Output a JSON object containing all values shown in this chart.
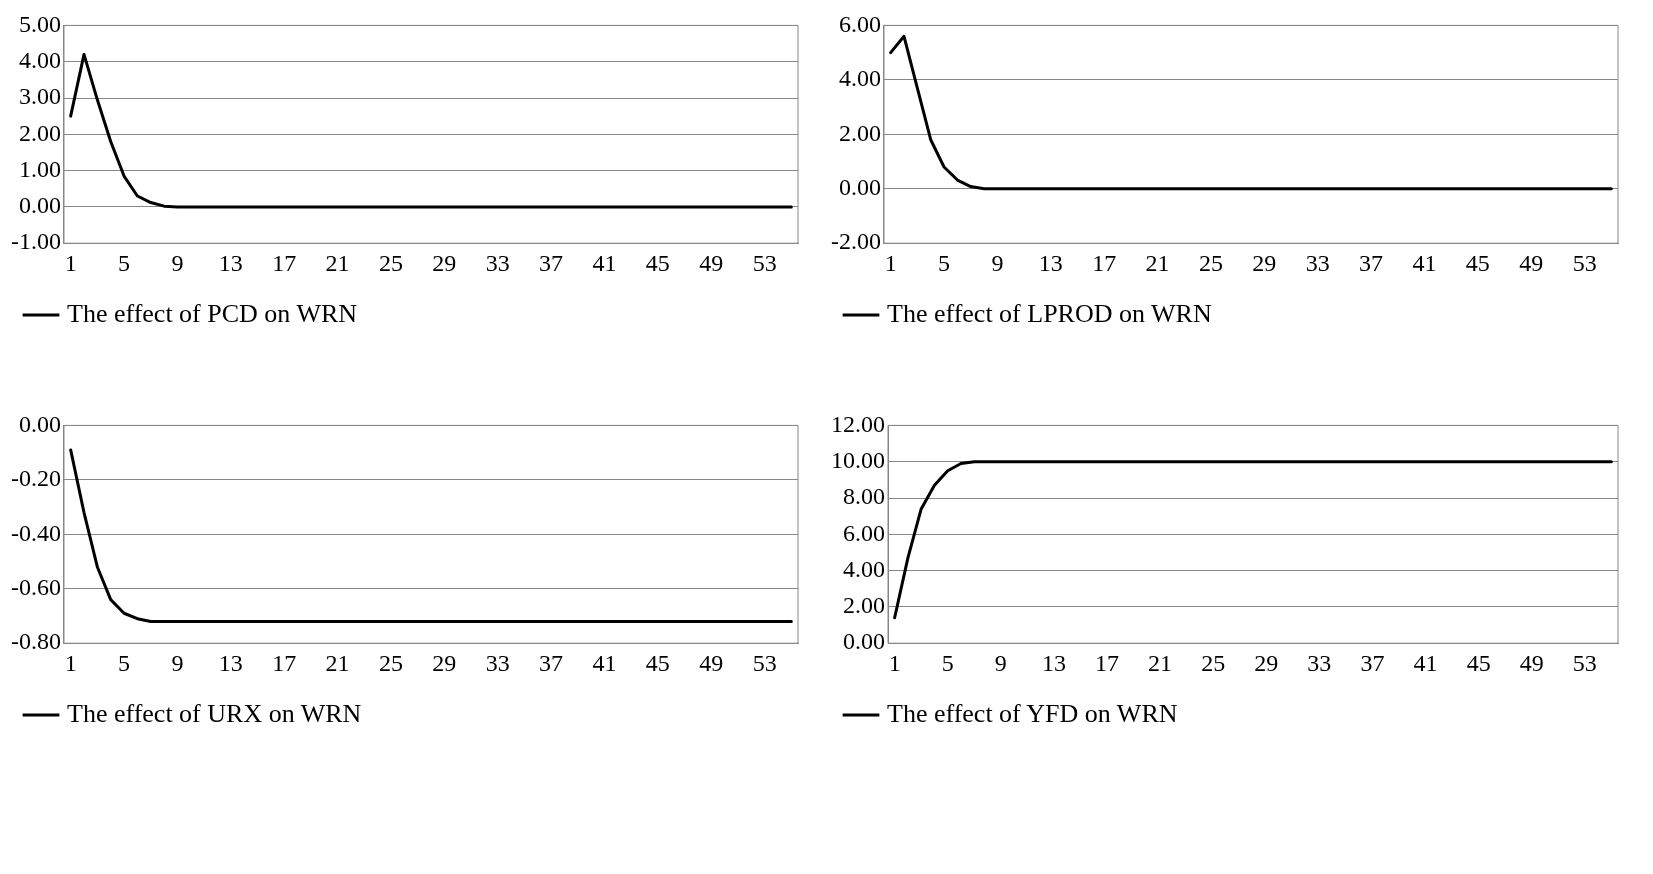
{
  "chart_data": [
    {
      "type": "line",
      "categories": [
        "1",
        null,
        null,
        null,
        "5",
        null,
        null,
        null,
        "9",
        null,
        null,
        null,
        "13",
        null,
        null,
        null,
        "17",
        null,
        null,
        null,
        "21",
        null,
        null,
        null,
        "25",
        null,
        null,
        null,
        "29",
        null,
        null,
        null,
        "33",
        null,
        null,
        null,
        "37",
        null,
        null,
        null,
        "41",
        null,
        null,
        null,
        "45",
        null,
        null,
        null,
        "49",
        null,
        null,
        null,
        "53",
        null,
        null
      ],
      "series": [
        {
          "name": "The effect of PCD on WRN",
          "color": "#000000",
          "values": [
            2.5,
            4.2,
            2.95,
            1.8,
            0.85,
            0.3,
            0.12,
            0.02,
            0,
            0,
            0,
            0,
            0,
            0,
            0,
            0,
            0,
            0,
            0,
            0,
            0,
            0,
            0,
            0,
            0,
            0,
            0,
            0,
            0,
            0,
            0,
            0,
            0,
            0,
            0,
            0,
            0,
            0,
            0,
            0,
            0,
            0,
            0,
            0,
            0,
            0,
            0,
            0,
            0,
            0,
            0,
            0,
            0,
            0,
            0
          ]
        }
      ],
      "ylim": [
        -1,
        5
      ],
      "yticks": [
        {
          "value": -1,
          "label": "-1.00"
        },
        {
          "value": 0,
          "label": "0.00"
        },
        {
          "value": 1,
          "label": "1.00"
        },
        {
          "value": 2,
          "label": "2.00"
        },
        {
          "value": 3,
          "label": "3.00"
        },
        {
          "value": 4,
          "label": "4.00"
        },
        {
          "value": 5,
          "label": "5.00"
        }
      ],
      "grid": "y",
      "legend": "bottom",
      "marker": "none",
      "line_style": "solid"
    },
    {
      "type": "line",
      "categories": [
        "1",
        null,
        null,
        null,
        "5",
        null,
        null,
        null,
        "9",
        null,
        null,
        null,
        "13",
        null,
        null,
        null,
        "17",
        null,
        null,
        null,
        "21",
        null,
        null,
        null,
        "25",
        null,
        null,
        null,
        "29",
        null,
        null,
        null,
        "33",
        null,
        null,
        null,
        "37",
        null,
        null,
        null,
        "41",
        null,
        null,
        null,
        "45",
        null,
        null,
        null,
        "49",
        null,
        null,
        null,
        "53",
        null,
        null
      ],
      "series": [
        {
          "name": "The effect of LPROD on WRN",
          "color": "#000000",
          "values": [
            5.0,
            5.6,
            3.7,
            1.8,
            0.8,
            0.32,
            0.08,
            0,
            0,
            0,
            0,
            0,
            0,
            0,
            0,
            0,
            0,
            0,
            0,
            0,
            0,
            0,
            0,
            0,
            0,
            0,
            0,
            0,
            0,
            0,
            0,
            0,
            0,
            0,
            0,
            0,
            0,
            0,
            0,
            0,
            0,
            0,
            0,
            0,
            0,
            0,
            0,
            0,
            0,
            0,
            0,
            0,
            0,
            0,
            0
          ]
        }
      ],
      "ylim": [
        -2,
        6
      ],
      "yticks": [
        {
          "value": -2,
          "label": "-2.00"
        },
        {
          "value": 0,
          "label": "0.00"
        },
        {
          "value": 2,
          "label": "2.00"
        },
        {
          "value": 4,
          "label": "4.00"
        },
        {
          "value": 6,
          "label": "6.00"
        }
      ],
      "grid": "y",
      "legend": "bottom",
      "marker": "none",
      "line_style": "solid"
    },
    {
      "type": "line",
      "categories": [
        "1",
        null,
        null,
        null,
        "5",
        null,
        null,
        null,
        "9",
        null,
        null,
        null,
        "13",
        null,
        null,
        null,
        "17",
        null,
        null,
        null,
        "21",
        null,
        null,
        null,
        "25",
        null,
        null,
        null,
        "29",
        null,
        null,
        null,
        "33",
        null,
        null,
        null,
        "37",
        null,
        null,
        null,
        "41",
        null,
        null,
        null,
        "45",
        null,
        null,
        null,
        "49",
        null,
        null,
        null,
        "53",
        null,
        null
      ],
      "series": [
        {
          "name": "The effect of URX on WRN",
          "color": "#000000",
          "values": [
            -0.09,
            -0.32,
            -0.52,
            -0.64,
            -0.69,
            -0.71,
            -0.72,
            -0.72,
            -0.72,
            -0.72,
            -0.72,
            -0.72,
            -0.72,
            -0.72,
            -0.72,
            -0.72,
            -0.72,
            -0.72,
            -0.72,
            -0.72,
            -0.72,
            -0.72,
            -0.72,
            -0.72,
            -0.72,
            -0.72,
            -0.72,
            -0.72,
            -0.72,
            -0.72,
            -0.72,
            -0.72,
            -0.72,
            -0.72,
            -0.72,
            -0.72,
            -0.72,
            -0.72,
            -0.72,
            -0.72,
            -0.72,
            -0.72,
            -0.72,
            -0.72,
            -0.72,
            -0.72,
            -0.72,
            -0.72,
            -0.72,
            -0.72,
            -0.72,
            -0.72,
            -0.72,
            -0.72,
            -0.72
          ]
        }
      ],
      "ylim": [
        -0.8,
        0
      ],
      "yticks": [
        {
          "value": -0.8,
          "label": "-0.80"
        },
        {
          "value": -0.6,
          "label": "-0.60"
        },
        {
          "value": -0.4,
          "label": "-0.40"
        },
        {
          "value": -0.2,
          "label": "-0.20"
        },
        {
          "value": 0,
          "label": "0.00"
        }
      ],
      "grid": "y",
      "legend": "bottom",
      "marker": "none",
      "line_style": "solid"
    },
    {
      "type": "line",
      "categories": [
        "1",
        null,
        null,
        null,
        "5",
        null,
        null,
        null,
        "9",
        null,
        null,
        null,
        "13",
        null,
        null,
        null,
        "17",
        null,
        null,
        null,
        "21",
        null,
        null,
        null,
        "25",
        null,
        null,
        null,
        "29",
        null,
        null,
        null,
        "33",
        null,
        null,
        null,
        "37",
        null,
        null,
        null,
        "41",
        null,
        null,
        null,
        "45",
        null,
        null,
        null,
        "49",
        null,
        null,
        null,
        "53",
        null,
        null
      ],
      "series": [
        {
          "name": "The effect of YFD on WRN",
          "color": "#000000",
          "values": [
            1.4,
            4.7,
            7.4,
            8.7,
            9.5,
            9.9,
            10,
            10,
            10,
            10,
            10,
            10,
            10,
            10,
            10,
            10,
            10,
            10,
            10,
            10,
            10,
            10,
            10,
            10,
            10,
            10,
            10,
            10,
            10,
            10,
            10,
            10,
            10,
            10,
            10,
            10,
            10,
            10,
            10,
            10,
            10,
            10,
            10,
            10,
            10,
            10,
            10,
            10,
            10,
            10,
            10,
            10,
            10,
            10,
            10
          ]
        }
      ],
      "ylim": [
        0,
        12
      ],
      "yticks": [
        {
          "value": 0,
          "label": "0.00"
        },
        {
          "value": 2,
          "label": "2.00"
        },
        {
          "value": 4,
          "label": "4.00"
        },
        {
          "value": 6,
          "label": "6.00"
        },
        {
          "value": 8,
          "label": "8.00"
        },
        {
          "value": 10,
          "label": "10.00"
        },
        {
          "value": 12,
          "label": "12.00"
        }
      ],
      "grid": "y",
      "legend": "bottom",
      "marker": "none",
      "line_style": "solid"
    }
  ]
}
